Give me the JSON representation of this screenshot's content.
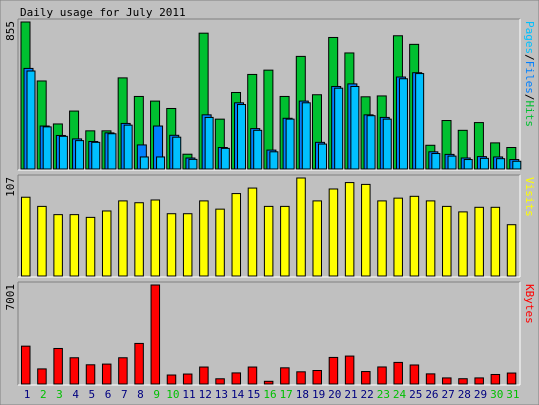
{
  "chart_data": {
    "type": "bar",
    "title": "Daily usage for July 2011",
    "categories": [
      "1",
      "2",
      "3",
      "4",
      "5",
      "6",
      "7",
      "8",
      "9",
      "10",
      "11",
      "12",
      "13",
      "14",
      "15",
      "16",
      "17",
      "18",
      "19",
      "20",
      "21",
      "22",
      "23",
      "24",
      "25",
      "26",
      "27",
      "28",
      "29",
      "30",
      "31"
    ],
    "weekend_days": [
      "2",
      "3",
      "9",
      "10",
      "16",
      "17",
      "23",
      "24",
      "30",
      "31"
    ],
    "colors": {
      "background": "#c0c0c0",
      "hits": "#00c030",
      "files": "#0080ff",
      "pages": "#00c0ff",
      "visits": "#ffff00",
      "kbytes": "#ff0000",
      "weekday_label": "#000080",
      "weekend_label": "#00c000"
    },
    "panels": [
      {
        "id": "hits",
        "ymax_label": "855",
        "ymax": 855,
        "legend": [
          "Pages",
          "/",
          "Files",
          "/",
          "Hits"
        ],
        "legend_colors": [
          "#00c0ff",
          "#000000",
          "#0080ff",
          "#000000",
          "#00c030"
        ],
        "series": [
          {
            "name": "Hits",
            "values": [
              855,
              512,
              262,
              337,
              222,
              222,
              530,
              422,
              395,
              352,
              86,
              790,
              290,
              445,
              550,
              575,
              422,
              655,
              432,
              765,
              675,
              420,
              425,
              775,
              725,
              138,
              282,
              225,
              270,
              152,
              125
            ]
          },
          {
            "name": "Files",
            "values": [
              585,
              250,
              195,
              175,
              160,
              210,
              265,
              140,
              250,
              196,
              64,
              315,
              125,
              385,
              235,
              110,
              295,
              395,
              155,
              480,
              495,
              315,
              300,
              535,
              560,
              100,
              85,
              64,
              72,
              70,
              55
            ]
          },
          {
            "name": "Pages",
            "values": [
              570,
              245,
              190,
              165,
              155,
              205,
              255,
              70,
              70,
              185,
              56,
              300,
              120,
              375,
              225,
              100,
              290,
              385,
              145,
              470,
              480,
              310,
              290,
              525,
              555,
              90,
              75,
              55,
              62,
              60,
              45
            ]
          }
        ]
      },
      {
        "id": "visits",
        "ymax_label": "107",
        "ymax": 107,
        "legend": [
          "Visits"
        ],
        "legend_colors": [
          "#ffff00"
        ],
        "series": [
          {
            "name": "Visits",
            "values": [
              86,
              76,
              67,
              67,
              64,
              71,
              82,
              80,
              83,
              68,
              68,
              82,
              73,
              90,
              96,
              76,
              76,
              107,
              82,
              95,
              102,
              100,
              82,
              85,
              87,
              82,
              76,
              70,
              75,
              75,
              56
            ]
          }
        ]
      },
      {
        "id": "kbytes",
        "ymax_label": "7001",
        "ymax": 7001,
        "legend": [
          "KBytes"
        ],
        "legend_colors": [
          "#ff0000"
        ],
        "series": [
          {
            "name": "KBytes",
            "values": [
              2676,
              1068,
              2512,
              1856,
              1359,
              1408,
              1856,
              2869,
              7001,
              636,
              704,
              1200,
              370,
              784,
              1200,
              190,
              1145,
              863,
              955,
              1879,
              1975,
              881,
              1205,
              1527,
              1345,
              717,
              431,
              374,
              431,
              673,
              775
            ]
          }
        ]
      }
    ]
  }
}
